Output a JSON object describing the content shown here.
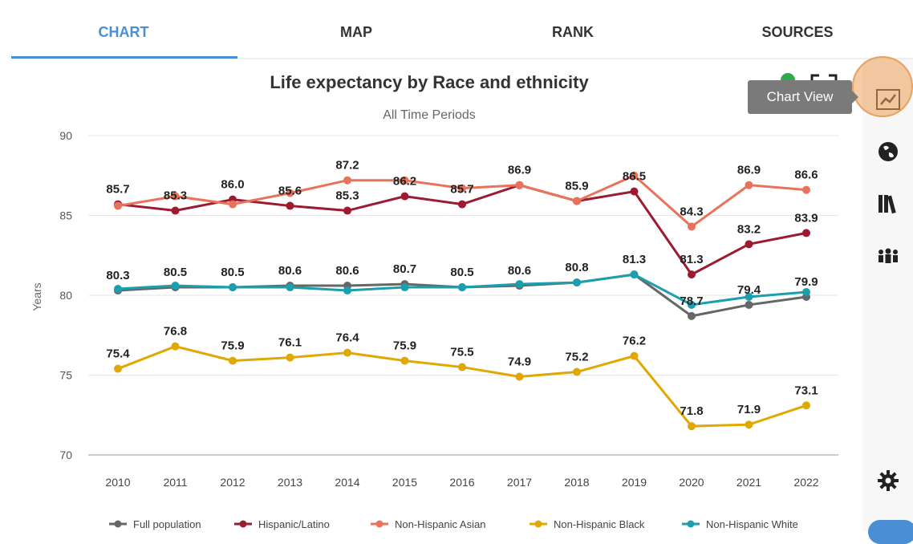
{
  "tabs": [
    {
      "label": "CHART",
      "active": true
    },
    {
      "label": "MAP",
      "active": false
    },
    {
      "label": "RANK",
      "active": false
    },
    {
      "label": "SOURCES",
      "active": false
    }
  ],
  "tooltip": "Chart View",
  "sidebar": {
    "icons": [
      "line-chart-icon",
      "globe-icon",
      "books-icon",
      "people-icon",
      "gear-icon"
    ]
  },
  "chart_data": {
    "type": "line",
    "title": "Life expectancy by Race and ethnicity",
    "subtitle": "All Time Periods",
    "xlabel": "",
    "ylabel": "Years",
    "ylim": [
      70,
      90
    ],
    "yticks": [
      70,
      75,
      80,
      85,
      90
    ],
    "grid": true,
    "legend": "bottom",
    "x": [
      "2010",
      "2011",
      "2012",
      "2013",
      "2014",
      "2015",
      "2016",
      "2017",
      "2018",
      "2019",
      "2020",
      "2021",
      "2022"
    ],
    "series": [
      {
        "name": "Full population",
        "color": "#666666",
        "values": [
          80.3,
          80.5,
          80.5,
          80.6,
          80.6,
          80.7,
          80.5,
          80.6,
          80.8,
          81.3,
          78.7,
          79.4,
          79.9
        ],
        "labeled": true
      },
      {
        "name": "Hispanic/Latino",
        "color": "#9b1b30",
        "values": [
          85.7,
          85.3,
          86.0,
          85.6,
          85.3,
          86.2,
          85.7,
          86.9,
          85.9,
          86.5,
          81.3,
          83.2,
          83.9
        ],
        "labeled": true
      },
      {
        "name": "Non-Hispanic Asian",
        "color": "#e8735a",
        "values": [
          85.6,
          86.2,
          85.7,
          86.4,
          87.2,
          87.2,
          86.7,
          86.9,
          85.9,
          87.5,
          84.3,
          86.9,
          86.6
        ],
        "labeled": false
      },
      {
        "name": "Non-Hispanic Black",
        "color": "#e0a800",
        "values": [
          75.4,
          76.8,
          75.9,
          76.1,
          76.4,
          75.9,
          75.5,
          74.9,
          75.2,
          76.2,
          71.8,
          71.9,
          73.1
        ],
        "labeled": true
      },
      {
        "name": "Non-Hispanic White",
        "color": "#1a9fae",
        "values": [
          80.4,
          80.6,
          80.5,
          80.5,
          80.3,
          80.5,
          80.5,
          80.7,
          80.8,
          81.3,
          79.4,
          79.9,
          80.2
        ],
        "labeled": false
      }
    ],
    "point_labels": [
      {
        "x": "2010",
        "text": "85.7",
        "y": 85.7
      },
      {
        "x": "2011",
        "text": "85.3",
        "y": 85.3
      },
      {
        "x": "2012",
        "text": "86.0",
        "y": 86.0
      },
      {
        "x": "2013",
        "text": "85.6",
        "y": 85.6
      },
      {
        "x": "2014",
        "text": "87.2",
        "y": 87.2
      },
      {
        "x": "2014",
        "text": "85.3",
        "y": 85.3
      },
      {
        "x": "2015",
        "text": "86.2",
        "y": 86.2
      },
      {
        "x": "2016",
        "text": "85.7",
        "y": 85.7
      },
      {
        "x": "2017",
        "text": "86.9",
        "y": 86.9
      },
      {
        "x": "2018",
        "text": "85.9",
        "y": 85.9
      },
      {
        "x": "2019",
        "text": "86.5",
        "y": 86.5
      },
      {
        "x": "2020",
        "text": "84.3",
        "y": 84.3
      },
      {
        "x": "2020",
        "text": "81.3",
        "y": 81.3
      },
      {
        "x": "2021",
        "text": "86.9",
        "y": 86.9
      },
      {
        "x": "2021",
        "text": "83.2",
        "y": 83.2
      },
      {
        "x": "2022",
        "text": "86.6",
        "y": 86.6
      },
      {
        "x": "2022",
        "text": "83.9",
        "y": 83.9
      },
      {
        "x": "2010",
        "text": "80.3",
        "y": 80.3
      },
      {
        "x": "2011",
        "text": "80.5",
        "y": 80.5
      },
      {
        "x": "2012",
        "text": "80.5",
        "y": 80.5
      },
      {
        "x": "2013",
        "text": "80.6",
        "y": 80.6
      },
      {
        "x": "2014",
        "text": "80.6",
        "y": 80.6
      },
      {
        "x": "2015",
        "text": "80.7",
        "y": 80.7
      },
      {
        "x": "2016",
        "text": "80.5",
        "y": 80.5
      },
      {
        "x": "2017",
        "text": "80.6",
        "y": 80.6
      },
      {
        "x": "2018",
        "text": "80.8",
        "y": 80.8
      },
      {
        "x": "2019",
        "text": "81.3",
        "y": 81.3
      },
      {
        "x": "2020",
        "text": "78.7",
        "y": 78.7
      },
      {
        "x": "2021",
        "text": "79.4",
        "y": 79.4
      },
      {
        "x": "2022",
        "text": "79.9",
        "y": 79.9
      },
      {
        "x": "2010",
        "text": "75.4",
        "y": 75.4
      },
      {
        "x": "2011",
        "text": "76.8",
        "y": 76.8
      },
      {
        "x": "2012",
        "text": "75.9",
        "y": 75.9
      },
      {
        "x": "2013",
        "text": "76.1",
        "y": 76.1
      },
      {
        "x": "2014",
        "text": "76.4",
        "y": 76.4
      },
      {
        "x": "2015",
        "text": "75.9",
        "y": 75.9
      },
      {
        "x": "2016",
        "text": "75.5",
        "y": 75.5
      },
      {
        "x": "2017",
        "text": "74.9",
        "y": 74.9
      },
      {
        "x": "2018",
        "text": "75.2",
        "y": 75.2
      },
      {
        "x": "2019",
        "text": "76.2",
        "y": 76.2
      },
      {
        "x": "2020",
        "text": "71.8",
        "y": 71.8
      },
      {
        "x": "2021",
        "text": "71.9",
        "y": 71.9
      },
      {
        "x": "2022",
        "text": "73.1",
        "y": 73.1
      }
    ]
  }
}
